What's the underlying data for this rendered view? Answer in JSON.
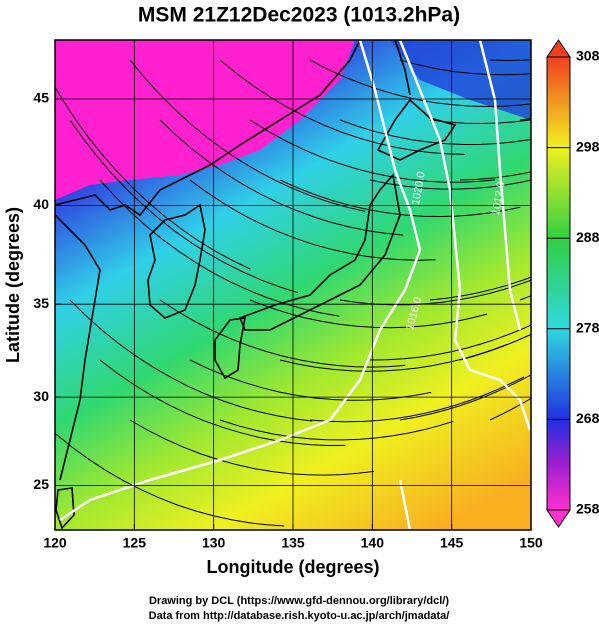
{
  "chart_data": {
    "type": "map",
    "title": "MSM 21Z12Dec2023 (1013.2hPa)",
    "xlabel": "Longitude (degrees)",
    "ylabel": "Latitude  (degrees)",
    "xlim": [
      120,
      150
    ],
    "xticks": [
      120,
      125,
      130,
      135,
      140,
      145,
      150
    ],
    "ylim": [
      22.4,
      47.6
    ],
    "yticks": [
      25,
      30,
      35,
      40,
      45
    ],
    "colorbar": {
      "lim": [
        258,
        308
      ],
      "ticks": [
        258,
        268,
        278,
        288,
        298,
        308
      ]
    },
    "contour_labels": [
      "1020.0",
      "1016.0",
      "1012.0"
    ],
    "credits": [
      "Drawing by DCL (https://www.gfd-dennou.org/library/dcl/)",
      "Data from http://database.rish.kyoto-u.ac.jp/arch/jmadata/"
    ]
  }
}
